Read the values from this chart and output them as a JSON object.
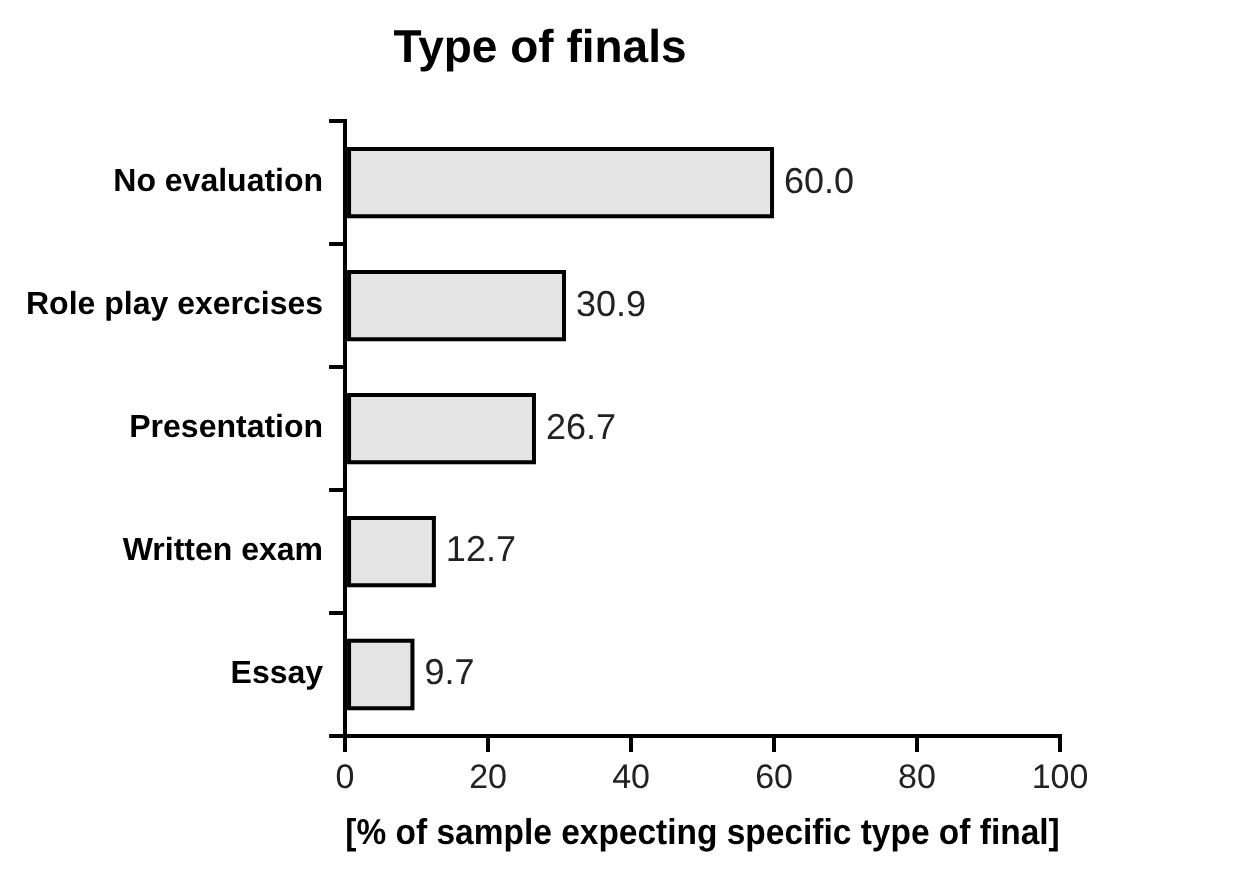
{
  "chart_data": {
    "type": "bar",
    "orientation": "horizontal",
    "title": "Type of finals",
    "xlabel": "[% of sample expecting specific type of final]",
    "categories": [
      "No evaluation",
      "Role play exercises",
      "Presentation",
      "Written exam",
      "Essay"
    ],
    "values": [
      60.0,
      30.9,
      26.7,
      12.7,
      9.7
    ],
    "color": "#e4e4e4",
    "xlim": [
      0,
      100
    ],
    "xticks": [
      0,
      20,
      40,
      60,
      80,
      100
    ],
    "grid": false,
    "legend": false,
    "value_labels": [
      "60.0",
      "30.9",
      "26.7",
      "12.7",
      "9.7"
    ]
  }
}
